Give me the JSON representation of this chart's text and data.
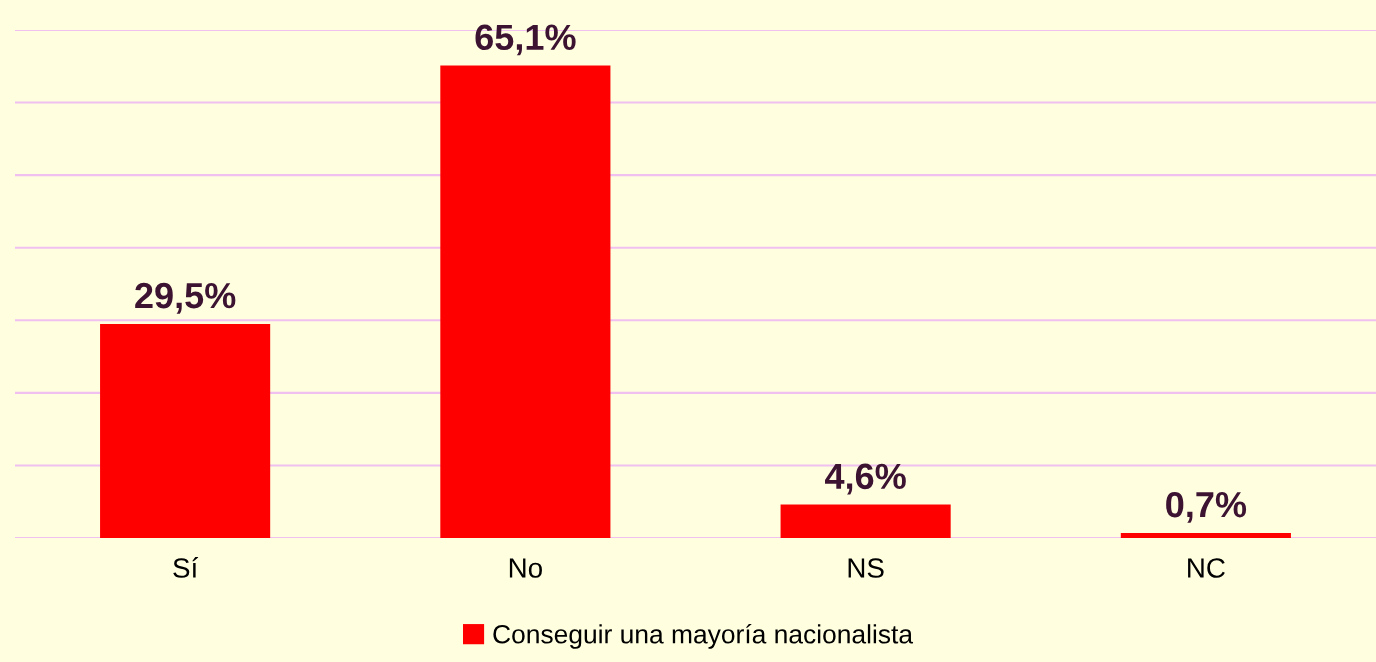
{
  "chart_data": {
    "type": "bar",
    "categories": [
      "Sí",
      "No",
      "NS",
      "NC"
    ],
    "series": [
      {
        "name": "Conseguir una mayoría nacionalista",
        "color": "#ff0000",
        "values": [
          29.5,
          65.1,
          4.6,
          0.7
        ],
        "value_labels": [
          "29,5%",
          "65,1%",
          "4,6%",
          "0,7%"
        ]
      }
    ],
    "ylim": [
      0,
      70
    ],
    "yticks": [
      {
        "value": 0,
        "label": null
      },
      {
        "value": 10,
        "label": null
      },
      {
        "value": 20,
        "label": null
      },
      {
        "value": 30,
        "label": null
      },
      {
        "value": 40,
        "label": null
      },
      {
        "value": 50,
        "label": null
      },
      {
        "value": 60,
        "label": null
      },
      {
        "value": 70,
        "label": null
      }
    ],
    "grid": "y",
    "legend": "bottom",
    "tick_labels": "x"
  }
}
